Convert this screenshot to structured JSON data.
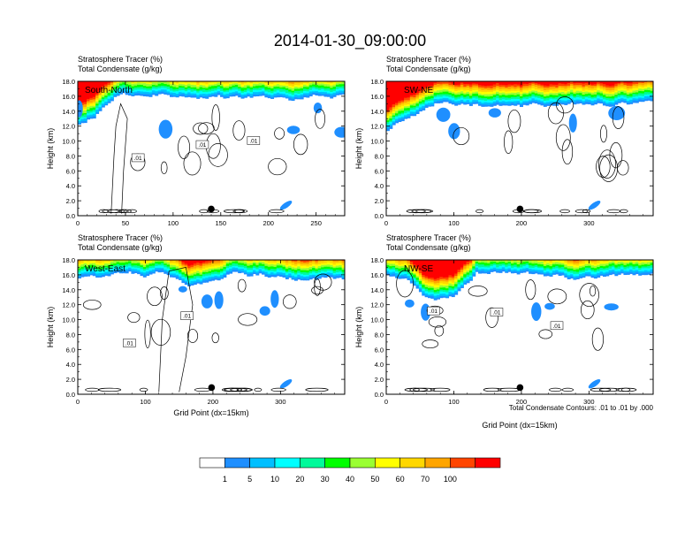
{
  "figure": {
    "title": "2014-01-30_09:00:00",
    "contour_note": "Total Condensate Contours: .01 to .01 by .000"
  },
  "colorbar": {
    "labels": [
      "1",
      "5",
      "10",
      "20",
      "30",
      "40",
      "50",
      "60",
      "70",
      "100"
    ],
    "colors": [
      "#ffffff",
      "#1f8fff",
      "#00bfff",
      "#00ffff",
      "#00fa9a",
      "#00ff00",
      "#9aff32",
      "#ffff00",
      "#ffd700",
      "#ffa500",
      "#ff4500",
      "#ff0000"
    ]
  },
  "chart_data": [
    {
      "type": "heatmap",
      "panel_label": "South-North",
      "field_labels": [
        "Stratosphere Tracer   (%)",
        "Total Condensate   (g/kg)"
      ],
      "ylabel": "Height (km)",
      "xlabel": "",
      "xlim": [
        0,
        280
      ],
      "ylim": [
        0,
        18
      ],
      "x_ticks": [
        "0",
        "50",
        "100",
        "150",
        "200",
        "250"
      ],
      "x_tick_values": [
        0,
        50,
        100,
        150,
        200,
        250
      ],
      "y_ticks": [
        "0.0",
        "2.0",
        "4.0",
        "6.0",
        "8.0",
        "10.0",
        "12.0",
        "14.0",
        "16.0",
        "18.0"
      ],
      "contour_labels": [
        ".01",
        ".01",
        ".01"
      ],
      "marker_x": 140
    },
    {
      "type": "heatmap",
      "panel_label": "SW-NE",
      "field_labels": [
        "Stratosphere Tracer   (%)",
        "Total Condensate   (g/kg)"
      ],
      "ylabel": "Height (km)",
      "xlabel": "",
      "xlim": [
        0,
        395
      ],
      "ylim": [
        0,
        18
      ],
      "x_ticks": [
        "0",
        "100",
        "200",
        "300"
      ],
      "x_tick_values": [
        0,
        100,
        200,
        300
      ],
      "y_ticks": [
        "0.0",
        "2.0",
        "4.0",
        "6.0",
        "8.0",
        "10.0",
        "12.0",
        "14.0",
        "16.0",
        "18.0"
      ],
      "contour_labels": [],
      "marker_x": 198
    },
    {
      "type": "heatmap",
      "panel_label": "West-East",
      "field_labels": [
        "Stratosphere Tracer   (%)",
        "Total Condensate   (g/kg)"
      ],
      "ylabel": "Height (km)",
      "xlabel": "Grid Point (dx=15km)",
      "xlim": [
        0,
        395
      ],
      "ylim": [
        0,
        18
      ],
      "x_ticks": [
        "0",
        "100",
        "200",
        "300"
      ],
      "x_tick_values": [
        0,
        100,
        200,
        300
      ],
      "y_ticks": [
        "0.0",
        "2.0",
        "4.0",
        "6.0",
        "8.0",
        "10.0",
        "12.0",
        "14.0",
        "16.0",
        "18.0"
      ],
      "contour_labels": [
        ".01",
        ".01"
      ],
      "marker_x": 198
    },
    {
      "type": "heatmap",
      "panel_label": "NW-SE",
      "field_labels": [
        "Stratosphere Tracer   (%)",
        "Total Condensate   (g/kg)"
      ],
      "ylabel": "Height (km)",
      "xlabel": "Grid Point (dx=15km)",
      "xlim": [
        0,
        395
      ],
      "ylim": [
        0,
        18
      ],
      "x_ticks": [
        "0",
        "100",
        "200",
        "300"
      ],
      "x_tick_values": [
        0,
        100,
        200,
        300
      ],
      "y_ticks": [
        "0.0",
        "2.0",
        "4.0",
        "6.0",
        "8.0",
        "10.0",
        "12.0",
        "14.0",
        "16.0",
        "18.0"
      ],
      "contour_labels": [
        ".01",
        ".01",
        ".01"
      ],
      "marker_x": 198
    }
  ]
}
